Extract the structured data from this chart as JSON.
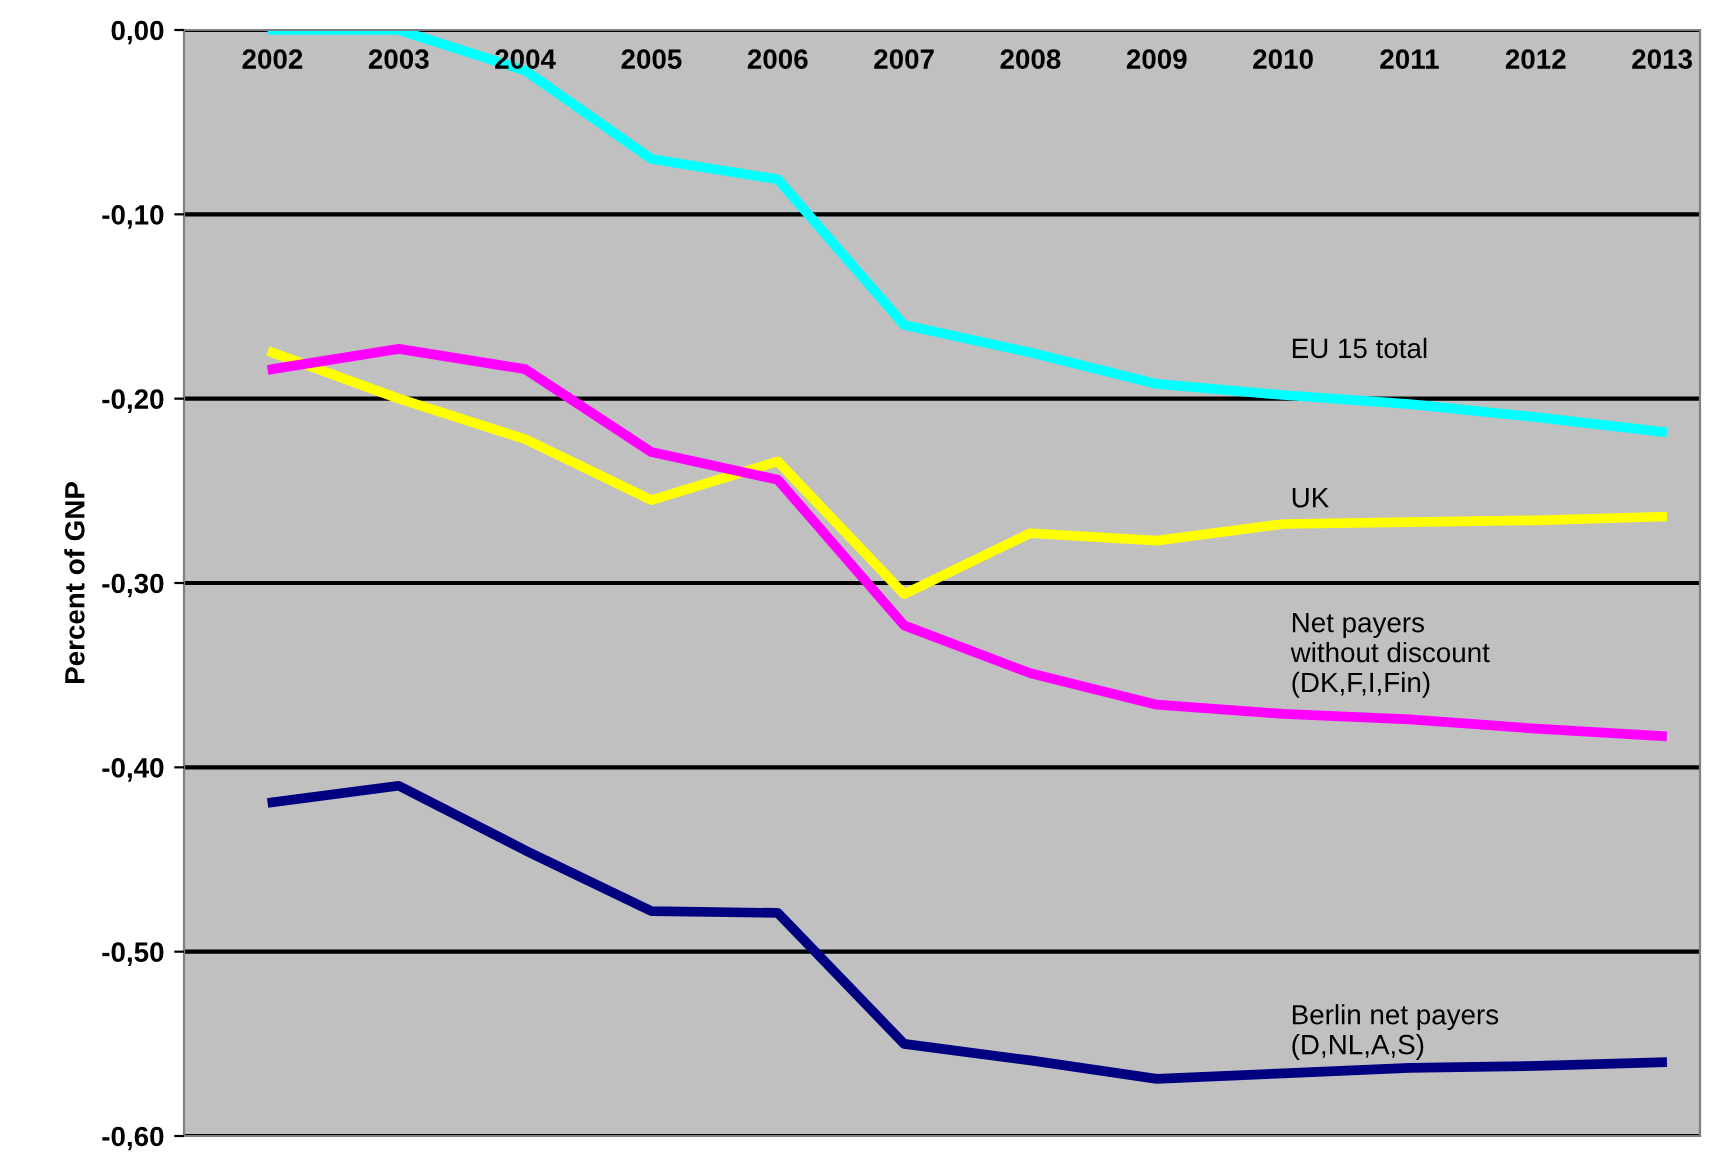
{
  "chart_data": {
    "type": "line",
    "ylabel": "Percent of GNP",
    "categories": [
      "2002",
      "2003",
      "2004",
      "2005",
      "2006",
      "2007",
      "2008",
      "2009",
      "2010",
      "2011",
      "2012",
      "2013"
    ],
    "series": [
      {
        "name": "EU 15 total",
        "color": "#00ffff",
        "values": [
          0.0,
          0.0,
          -0.022,
          -0.07,
          -0.081,
          -0.16,
          -0.175,
          -0.192,
          -0.198,
          -0.203,
          -0.21,
          -0.218
        ]
      },
      {
        "name": "UK",
        "color": "#ffff00",
        "values": [
          -0.175,
          -0.2,
          -0.222,
          -0.255,
          -0.234,
          -0.306,
          -0.273,
          -0.277,
          -0.268,
          -0.267,
          -0.266,
          -0.264
        ]
      },
      {
        "name": "Net payers\nwithout discount\n(DK,F,I,Fin)",
        "color": "#ff00ff",
        "values": [
          -0.184,
          -0.173,
          -0.184,
          -0.229,
          -0.244,
          -0.323,
          -0.349,
          -0.366,
          -0.371,
          -0.374,
          -0.379,
          -0.383
        ]
      },
      {
        "name": "Berlin net payers\n(D,NL,A,S)",
        "color": "#000080",
        "values": [
          -0.419,
          -0.41,
          -0.445,
          -0.478,
          -0.479,
          -0.55,
          -0.559,
          -0.569,
          -0.566,
          -0.563,
          -0.562,
          -0.56
        ]
      }
    ],
    "ylim": [
      -0.6,
      0.0
    ],
    "yticks": [
      {
        "value": -0.6,
        "label": "-0,60"
      },
      {
        "value": -0.5,
        "label": "-0,50"
      },
      {
        "value": -0.4,
        "label": "-0,40"
      },
      {
        "value": -0.3,
        "label": "-0,30"
      },
      {
        "value": -0.2,
        "label": "-0,20"
      },
      {
        "value": -0.1,
        "label": "-0,10"
      },
      {
        "value": 0.0,
        "label": "0,00"
      }
    ],
    "grid": "y",
    "legend": false,
    "marker": "none",
    "line_style": "solid"
  }
}
